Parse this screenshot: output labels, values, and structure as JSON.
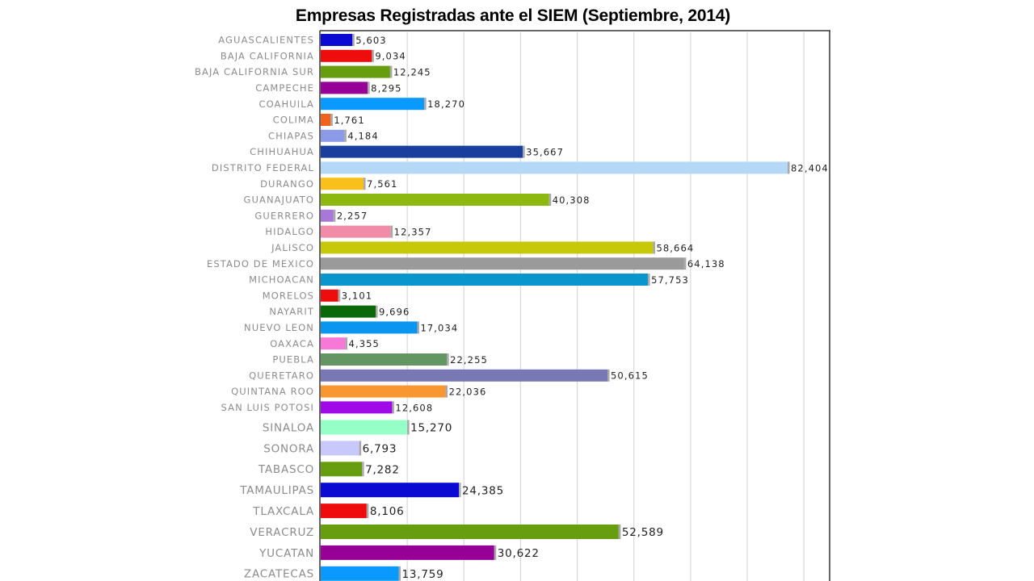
{
  "chart_data": {
    "type": "bar",
    "orientation": "horizontal",
    "title": "Empresas Registradas  ante el SIEM  (Septiembre, 2014)",
    "xlim": [
      0,
      87000
    ],
    "grid": true,
    "legend": "none",
    "categories": [
      "AGUASCALIENTES",
      "BAJA CALIFORNIA",
      "BAJA CALIFORNIA SUR",
      "CAMPECHE",
      "COAHUILA",
      "COLIMA",
      "CHIAPAS",
      "CHIHUAHUA",
      "DISTRITO FEDERAL",
      "DURANGO",
      "GUANAJUATO",
      "GUERRERO",
      "HIDALGO",
      "JALISCO",
      "ESTADO DE MEXICO",
      "MICHOACAN",
      "MORELOS",
      "NAYARIT",
      "NUEVO LEON",
      "OAXACA",
      "PUEBLA",
      "QUERETARO",
      "QUINTANA ROO",
      "SAN LUIS POTOSI",
      "SINALOA",
      "SONORA",
      "TABASCO",
      "TAMAULIPAS",
      "TLAXCALA",
      "VERACRUZ",
      "YUCATAN",
      "ZACATECAS"
    ],
    "values": [
      5603,
      9034,
      12245,
      8295,
      18270,
      1761,
      4184,
      35667,
      82404,
      7561,
      40308,
      2257,
      12357,
      58664,
      64138,
      57753,
      3101,
      9696,
      17034,
      4355,
      22255,
      50615,
      22036,
      12608,
      15270,
      6793,
      7282,
      24385,
      8106,
      52589,
      30622,
      13759
    ],
    "value_labels": [
      "5,603",
      "9,034",
      "12,245",
      "8,295",
      "18,270",
      "1,761",
      "4,184",
      "35,667",
      "82,404",
      "7,561",
      "40,308",
      "2,257",
      "12,357",
      "58,664",
      "64,138",
      "57,753",
      "3,101",
      "9,696",
      "17,034",
      "4,355",
      "22,255",
      "50,615",
      "22,036",
      "12,608",
      "15,270",
      "6,793",
      "7,282",
      "24,385",
      "8,106",
      "52,589",
      "30,622",
      "13,759"
    ],
    "colors": [
      "#0a0ad2",
      "#ee0c0c",
      "#669e10",
      "#960096",
      "#0a9aff",
      "#f0641e",
      "#8c9ae8",
      "#1a3e9e",
      "#b4d8f6",
      "#f8c018",
      "#8cb810",
      "#a878d8",
      "#f08ca8",
      "#c8c80a",
      "#9a9a9a",
      "#0896cc",
      "#ee0c0c",
      "#0a6a0a",
      "#0a96f0",
      "#f878d8",
      "#649664",
      "#7878b4",
      "#f89632",
      "#a00ae8",
      "#96ffc8",
      "#c8c8fa",
      "#669e10",
      "#0a0ad2",
      "#ee0c0c",
      "#669e10",
      "#960096",
      "#0a9aff"
    ]
  }
}
